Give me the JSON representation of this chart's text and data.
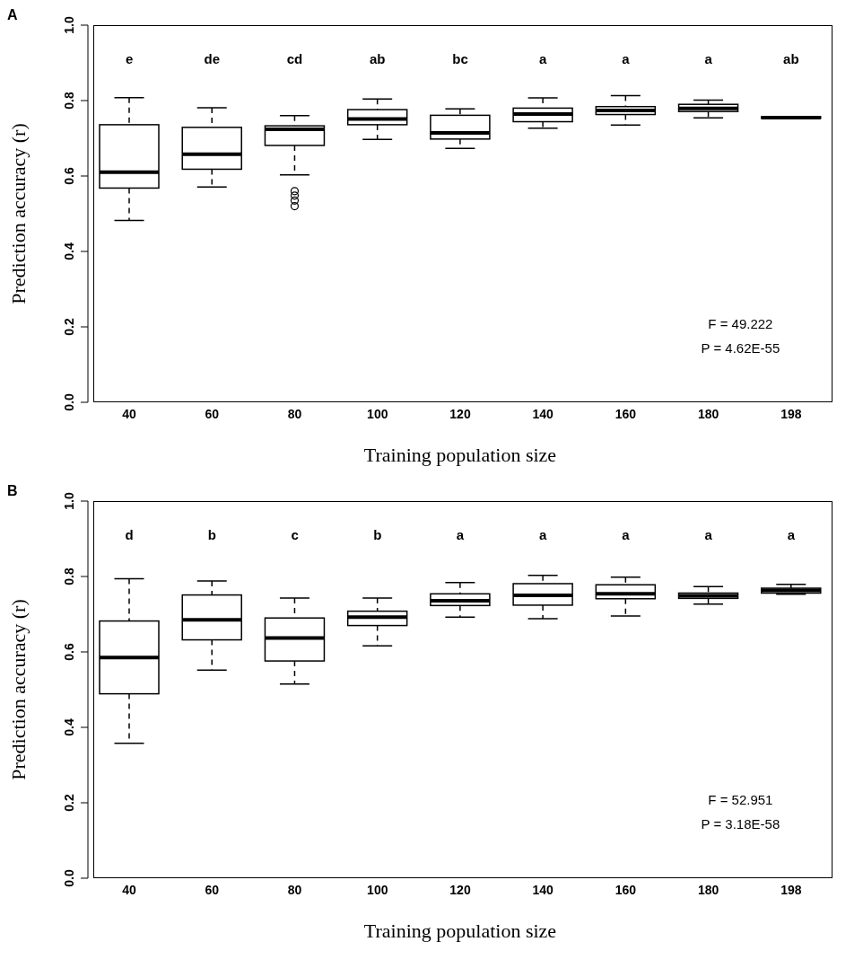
{
  "chart_data": [
    {
      "type": "box",
      "title": "A",
      "xlabel": "Training population size",
      "ylabel": "Prediction accuracy (r)",
      "categories": [
        "40",
        "60",
        "80",
        "100",
        "120",
        "140",
        "160",
        "180",
        "198"
      ],
      "ylim": [
        0,
        1
      ],
      "yticks": [
        {
          "value": 0,
          "label": "0.0"
        },
        {
          "value": 0.2,
          "label": "0.2"
        },
        {
          "value": 0.4,
          "label": "0.4"
        },
        {
          "value": 0.6,
          "label": "0.6"
        },
        {
          "value": 0.8,
          "label": "0.8"
        },
        {
          "value": 1,
          "label": "1.0"
        }
      ],
      "grid": false,
      "legend": false,
      "boxes": [
        {
          "low": 0.482,
          "q1": 0.568,
          "median": 0.61,
          "q3": 0.736,
          "high": 0.808
        },
        {
          "low": 0.571,
          "q1": 0.618,
          "median": 0.658,
          "q3": 0.729,
          "high": 0.781
        },
        {
          "low": 0.603,
          "q1": 0.681,
          "median": 0.724,
          "q3": 0.733,
          "high": 0.76,
          "outliers": [
            0.56,
            0.548,
            0.535,
            0.52
          ]
        },
        {
          "low": 0.697,
          "q1": 0.736,
          "median": 0.751,
          "q3": 0.776,
          "high": 0.804
        },
        {
          "low": 0.673,
          "q1": 0.698,
          "median": 0.714,
          "q3": 0.761,
          "high": 0.778
        },
        {
          "low": 0.727,
          "q1": 0.744,
          "median": 0.764,
          "q3": 0.78,
          "high": 0.807
        },
        {
          "low": 0.735,
          "q1": 0.763,
          "median": 0.774,
          "q3": 0.784,
          "high": 0.813
        },
        {
          "low": 0.754,
          "q1": 0.771,
          "median": 0.779,
          "q3": 0.79,
          "high": 0.801
        },
        {
          "low": 0.752,
          "q1": 0.753,
          "median": 0.755,
          "q3": 0.757,
          "high": 0.758
        }
      ],
      "annotations": [
        "e",
        "de",
        "cd",
        "ab",
        "bc",
        "a",
        "a",
        "a",
        "ab",
        "F = 49.222",
        "P = 4.62E-55"
      ]
    },
    {
      "type": "box",
      "title": "B",
      "xlabel": "Training population size",
      "ylabel": "Prediction accuracy (r)",
      "categories": [
        "40",
        "60",
        "80",
        "100",
        "120",
        "140",
        "160",
        "180",
        "198"
      ],
      "ylim": [
        0,
        1
      ],
      "yticks": [
        {
          "value": 0,
          "label": "0.0"
        },
        {
          "value": 0.2,
          "label": "0.2"
        },
        {
          "value": 0.4,
          "label": "0.4"
        },
        {
          "value": 0.6,
          "label": "0.6"
        },
        {
          "value": 0.8,
          "label": "0.8"
        },
        {
          "value": 1,
          "label": "1.0"
        }
      ],
      "grid": false,
      "legend": false,
      "boxes": [
        {
          "low": 0.358,
          "q1": 0.489,
          "median": 0.585,
          "q3": 0.682,
          "high": 0.794
        },
        {
          "low": 0.552,
          "q1": 0.632,
          "median": 0.685,
          "q3": 0.751,
          "high": 0.788
        },
        {
          "low": 0.515,
          "q1": 0.576,
          "median": 0.637,
          "q3": 0.69,
          "high": 0.743
        },
        {
          "low": 0.616,
          "q1": 0.67,
          "median": 0.692,
          "q3": 0.708,
          "high": 0.743
        },
        {
          "low": 0.692,
          "q1": 0.723,
          "median": 0.736,
          "q3": 0.754,
          "high": 0.784
        },
        {
          "low": 0.688,
          "q1": 0.724,
          "median": 0.75,
          "q3": 0.781,
          "high": 0.803
        },
        {
          "low": 0.695,
          "q1": 0.741,
          "median": 0.754,
          "q3": 0.778,
          "high": 0.798
        },
        {
          "low": 0.727,
          "q1": 0.742,
          "median": 0.749,
          "q3": 0.756,
          "high": 0.773
        },
        {
          "low": 0.753,
          "q1": 0.756,
          "median": 0.763,
          "q3": 0.769,
          "high": 0.779
        }
      ],
      "annotations": [
        "d",
        "b",
        "c",
        "b",
        "a",
        "a",
        "a",
        "a",
        "a",
        "F = 52.951",
        "P = 3.18E-58"
      ]
    }
  ]
}
